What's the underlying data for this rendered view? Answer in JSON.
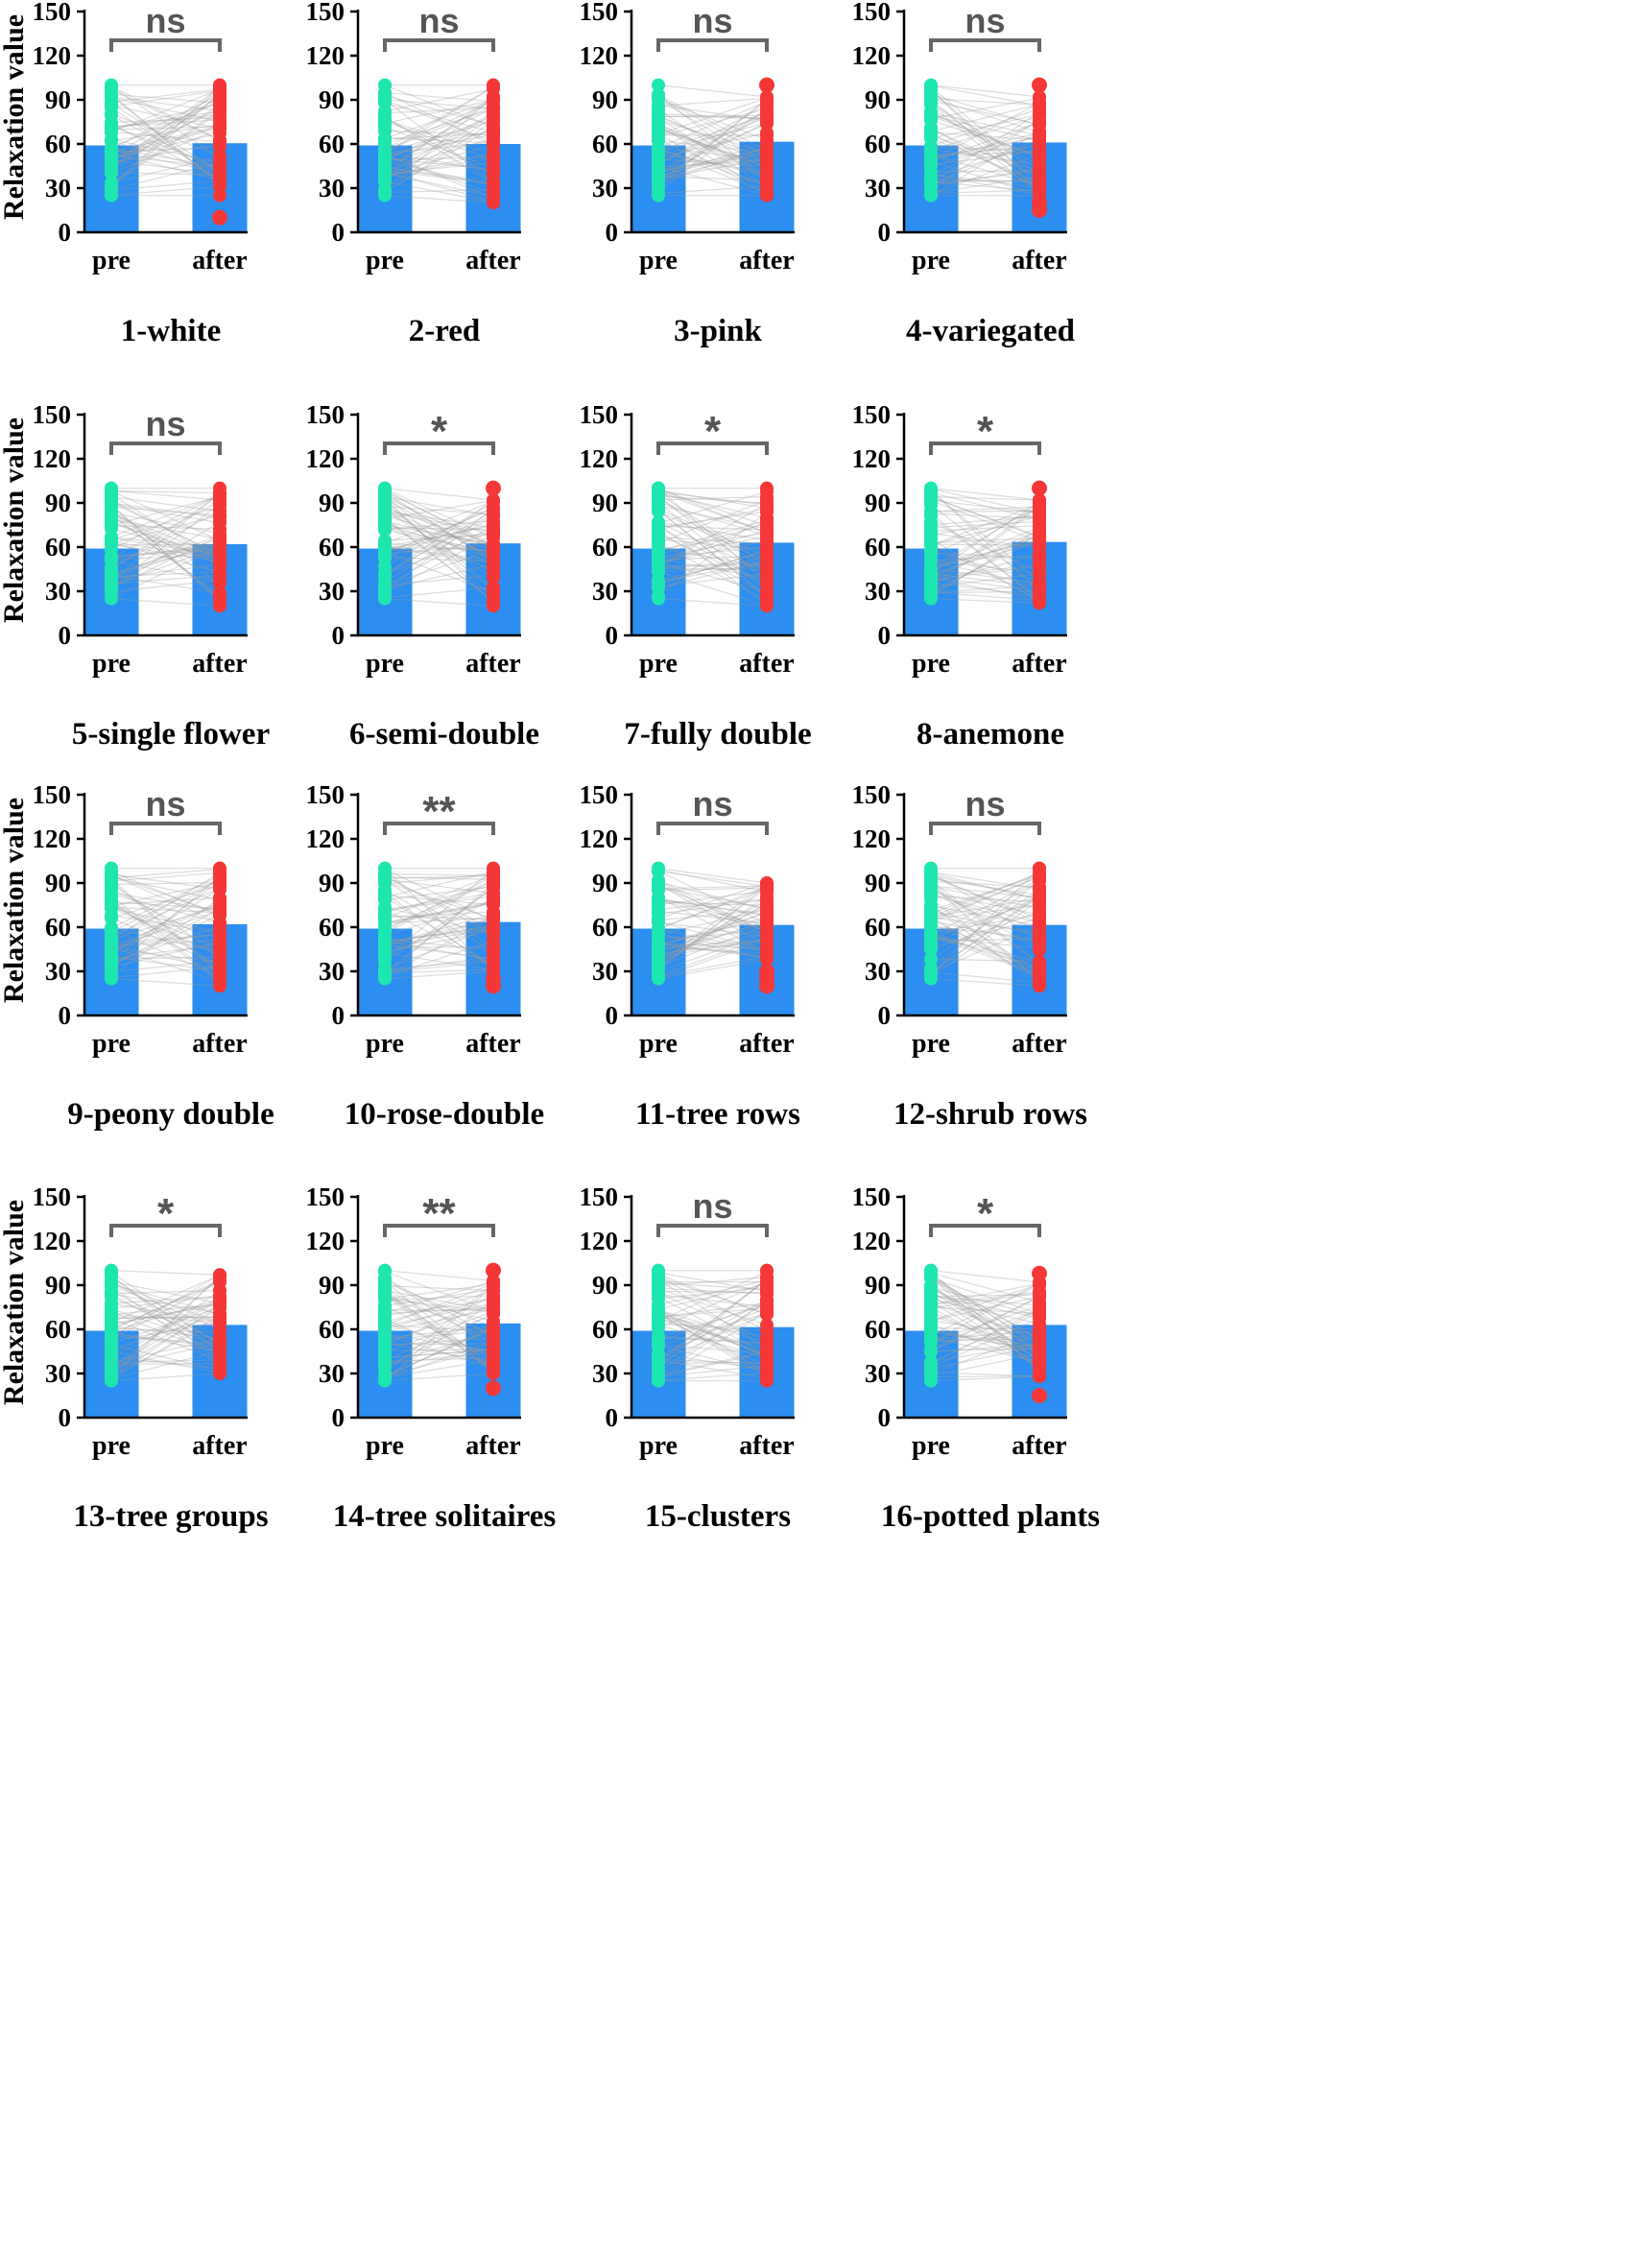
{
  "chart_data": {
    "type": "bar",
    "figure_description": "Paired pre/after relaxation values with individual points and connecting lines",
    "ylabel": "Relaxation value",
    "ylim": [
      0,
      150
    ],
    "yticks": [
      "0",
      "30",
      "60",
      "90",
      "120",
      "150"
    ],
    "categories": [
      "pre",
      "after"
    ],
    "colors": {
      "bar": "#2b8ef0",
      "pre_points": "#1ee6b0",
      "after_points": "#f53737",
      "pair_lines": "#9a9a9a",
      "bracket": "#666666",
      "text": "#000000"
    },
    "panels": [
      {
        "title": "1-white",
        "significance": "ns",
        "pre_mean": 59,
        "after_mean": 60.5,
        "pre_range": [
          25,
          100
        ],
        "after_range": [
          25,
          100
        ],
        "after_outliers": [
          10
        ]
      },
      {
        "title": "2-red",
        "significance": "ns",
        "pre_mean": 59,
        "after_mean": 60,
        "pre_range": [
          25,
          100
        ],
        "after_range": [
          20,
          100
        ],
        "after_outliers": []
      },
      {
        "title": "3-pink",
        "significance": "ns",
        "pre_mean": 59,
        "after_mean": 61.5,
        "pre_range": [
          25,
          100
        ],
        "after_range": [
          25,
          92
        ],
        "after_outliers": [
          100
        ]
      },
      {
        "title": "4-variegated",
        "significance": "ns",
        "pre_mean": 59,
        "after_mean": 61,
        "pre_range": [
          25,
          100
        ],
        "after_range": [
          25,
          92
        ],
        "after_outliers": [
          100,
          20,
          15
        ]
      },
      {
        "title": "5-single flower",
        "significance": "ns",
        "pre_mean": 59,
        "after_mean": 62,
        "pre_range": [
          25,
          100
        ],
        "after_range": [
          20,
          100
        ],
        "after_outliers": []
      },
      {
        "title": "6-semi-double",
        "significance": "*",
        "pre_mean": 59,
        "after_mean": 62.5,
        "pre_range": [
          25,
          100
        ],
        "after_range": [
          20,
          92
        ],
        "after_outliers": [
          100
        ]
      },
      {
        "title": "7-fully double",
        "significance": "*",
        "pre_mean": 59,
        "after_mean": 63,
        "pre_range": [
          25,
          100
        ],
        "after_range": [
          20,
          100
        ],
        "after_outliers": []
      },
      {
        "title": "8-anemone",
        "significance": "*",
        "pre_mean": 59,
        "after_mean": 63.5,
        "pre_range": [
          25,
          100
        ],
        "after_range": [
          22,
          92
        ],
        "after_outliers": [
          100
        ]
      },
      {
        "title": "9-peony double",
        "significance": "ns",
        "pre_mean": 59,
        "after_mean": 62,
        "pre_range": [
          25,
          100
        ],
        "after_range": [
          20,
          100
        ],
        "after_outliers": []
      },
      {
        "title": "10-rose-double",
        "significance": "**",
        "pre_mean": 59,
        "after_mean": 63.5,
        "pre_range": [
          25,
          100
        ],
        "after_range": [
          30,
          100
        ],
        "after_outliers": [
          25,
          20
        ]
      },
      {
        "title": "11-tree rows",
        "significance": "ns",
        "pre_mean": 59,
        "after_mean": 61.5,
        "pre_range": [
          25,
          100
        ],
        "after_range": [
          38,
          90
        ],
        "after_outliers": [
          30,
          25,
          20
        ]
      },
      {
        "title": "12-shrub rows",
        "significance": "ns",
        "pre_mean": 59,
        "after_mean": 61.5,
        "pre_range": [
          25,
          100
        ],
        "after_range": [
          20,
          100
        ],
        "after_outliers": []
      },
      {
        "title": "13-tree groups",
        "significance": "*",
        "pre_mean": 59,
        "after_mean": 63,
        "pre_range": [
          25,
          100
        ],
        "after_range": [
          30,
          97
        ],
        "after_outliers": []
      },
      {
        "title": "14-tree solitaires",
        "significance": "**",
        "pre_mean": 59,
        "after_mean": 64,
        "pre_range": [
          25,
          100
        ],
        "after_range": [
          30,
          93
        ],
        "after_outliers": [
          100,
          20
        ]
      },
      {
        "title": "15-clusters",
        "significance": "ns",
        "pre_mean": 59,
        "after_mean": 61.5,
        "pre_range": [
          25,
          100
        ],
        "after_range": [
          25,
          100
        ],
        "after_outliers": []
      },
      {
        "title": "16-potted plants",
        "significance": "*",
        "pre_mean": 59,
        "after_mean": 63,
        "pre_range": [
          25,
          100
        ],
        "after_range": [
          28,
          92
        ],
        "after_outliers": [
          98,
          15
        ]
      }
    ]
  }
}
